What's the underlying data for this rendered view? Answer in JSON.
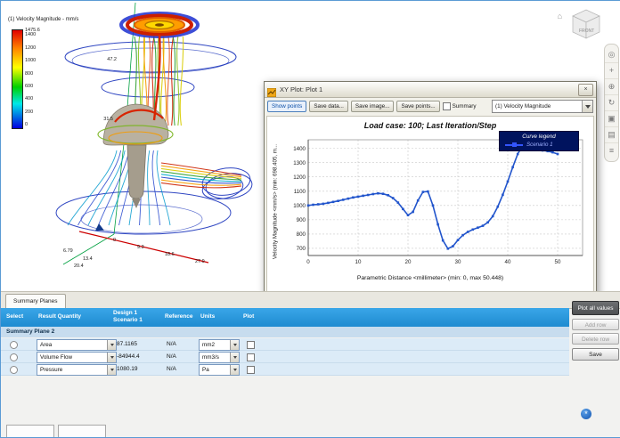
{
  "legend": {
    "title": "(1) Velocity Magnitude - mm/s",
    "ticks": [
      "1475.6",
      "1400",
      "1200",
      "1000",
      "800",
      "600",
      "400",
      "200",
      "0"
    ]
  },
  "viewport": {
    "measurements": [
      "47.2",
      "31.5",
      "6.79",
      "13.4",
      "20.4",
      "0",
      "9.3",
      "18.6",
      "27.9"
    ]
  },
  "viewcube": {
    "label": "FRONT"
  },
  "nav_toolbar": {
    "icons": [
      {
        "name": "steering-wheel-icon",
        "glyph": "◎"
      },
      {
        "name": "pan-icon",
        "glyph": "+"
      },
      {
        "name": "zoom-icon",
        "glyph": "⊕"
      },
      {
        "name": "orbit-icon",
        "glyph": "↻"
      },
      {
        "name": "viewcube-small-icon",
        "glyph": "▣"
      },
      {
        "name": "appearance-icon",
        "glyph": "▤"
      },
      {
        "name": "list-icon",
        "glyph": "≡"
      }
    ]
  },
  "xy_plot": {
    "window_title": "XY Plot: Plot 1",
    "buttons": {
      "show_points": "Show points",
      "save_data": "Save data...",
      "save_image": "Save image...",
      "save_points": "Save points..."
    },
    "summary_label": "Summary",
    "series_dropdown": "(1) Velocity Magnitude",
    "close_glyph": "×"
  },
  "chart_data": {
    "type": "line",
    "title": "Load case: 100; Last Iteration/Step",
    "xlabel": "Parametric Distance <millimeter> (min: 0, max 50.448)",
    "ylabel": "Velocity Magnitude <mm/s> (min: 698.405, m...",
    "legend_title": "Curve legend",
    "legend_position": "top-right",
    "grid": true,
    "xlim": [
      0,
      55
    ],
    "ylim": [
      650,
      1460
    ],
    "xticks": [
      0,
      10,
      20,
      30,
      40,
      50
    ],
    "yticks": [
      700,
      800,
      900,
      1000,
      1100,
      1200,
      1300,
      1400
    ],
    "series": [
      {
        "name": "Scenario 1",
        "color": "#2255cc",
        "x": [
          0,
          1,
          2,
          3,
          4,
          5,
          6,
          7,
          8,
          9,
          10,
          11,
          12,
          13,
          14,
          15,
          16,
          17,
          18,
          19,
          20,
          21,
          22,
          23,
          24,
          25,
          26,
          27,
          28,
          29,
          30,
          31,
          32,
          33,
          34,
          35,
          36,
          37,
          38,
          39,
          40,
          41,
          42,
          43,
          44,
          45,
          46,
          47,
          48,
          49,
          50
        ],
        "y": [
          1000,
          1005,
          1008,
          1012,
          1018,
          1025,
          1032,
          1040,
          1048,
          1056,
          1062,
          1068,
          1074,
          1080,
          1085,
          1082,
          1072,
          1052,
          1020,
          975,
          932,
          955,
          1035,
          1095,
          1098,
          1000,
          868,
          755,
          698,
          715,
          758,
          792,
          815,
          832,
          845,
          858,
          882,
          925,
          992,
          1075,
          1168,
          1268,
          1360,
          1420,
          1428,
          1408,
          1392,
          1385,
          1380,
          1372,
          1360
        ]
      }
    ]
  },
  "summary_panel": {
    "tab": "Summary Planes",
    "columns": {
      "select": "Select",
      "result_quantity": "Result Quantity",
      "design": "Design 1",
      "scenario": "Scenario 1",
      "reference": "Reference",
      "units": "Units",
      "plot": "Plot"
    },
    "group_label": "Summary Plane 2",
    "rows": [
      {
        "quantity": "Area",
        "value": "87.1165",
        "reference": "N/A",
        "units": "mm2"
      },
      {
        "quantity": "Volume Flow",
        "value": "-84944.4",
        "reference": "N/A",
        "units": "mm3/s"
      },
      {
        "quantity": "Pressure",
        "value": "1080.19",
        "reference": "N/A",
        "units": "Pa"
      }
    ],
    "buttons": {
      "plot_all": "Plot all values",
      "add_row": "Add row",
      "delete_row": "Delete row",
      "save": "Save"
    }
  }
}
